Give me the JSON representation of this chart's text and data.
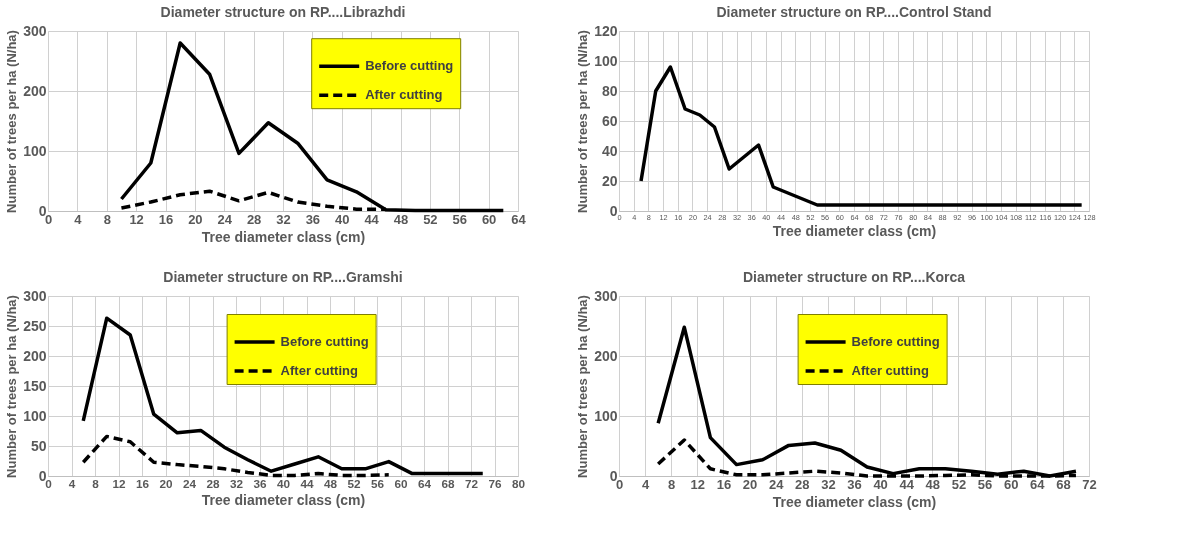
{
  "chart_data": [
    {
      "type": "line",
      "title": "Diameter structure on RP....Librazhdi",
      "xlabel": "Tree diameter class (cm)",
      "ylabel": "Number of trees per ha (N/ha)",
      "xlim": [
        0,
        64
      ],
      "xticks": [
        0,
        4,
        8,
        12,
        16,
        20,
        24,
        28,
        32,
        36,
        40,
        44,
        48,
        52,
        56,
        60,
        64
      ],
      "ylim": [
        0,
        300
      ],
      "yticks": [
        0,
        100,
        200,
        300
      ],
      "grid": true,
      "legend": "top right",
      "series": [
        {
          "name": "Before cutting",
          "color": "#000000",
          "line_style": "solid",
          "x": [
            10,
            14,
            18,
            22,
            26,
            30,
            34,
            38,
            42,
            46,
            50,
            54,
            58,
            62
          ],
          "values": [
            20,
            80,
            280,
            228,
            96,
            147,
            113,
            52,
            32,
            2,
            1,
            1,
            1,
            1
          ]
        },
        {
          "name": "After cutting",
          "color": "#000000",
          "line_style": "dashed",
          "x": [
            10,
            14,
            18,
            22,
            26,
            30,
            34,
            38,
            42,
            46
          ],
          "values": [
            5,
            15,
            27,
            33,
            17,
            31,
            15,
            8,
            3,
            3
          ]
        }
      ]
    },
    {
      "type": "line",
      "title": "Diameter structure on RP....Control Stand",
      "xlabel": "Tree diameter class (cm)",
      "ylabel": "Number of trees per ha (N/ha)",
      "xlim": [
        0,
        128
      ],
      "xticks": [
        0,
        4,
        8,
        12,
        16,
        20,
        24,
        28,
        32,
        36,
        40,
        44,
        48,
        52,
        56,
        60,
        64,
        68,
        72,
        76,
        80,
        84,
        88,
        92,
        96,
        100,
        104,
        108,
        112,
        116,
        120,
        124,
        128
      ],
      "ylim": [
        0,
        120
      ],
      "yticks": [
        0,
        20,
        40,
        60,
        80,
        100,
        120
      ],
      "grid": true,
      "series": [
        {
          "color": "#000000",
          "line_style": "solid",
          "x": [
            6,
            10,
            14,
            18,
            22,
            26,
            30,
            34,
            38,
            42,
            46,
            50,
            54,
            58,
            62,
            66,
            70,
            74,
            78,
            82,
            86,
            90,
            94,
            98,
            102,
            106,
            110,
            114,
            118,
            122,
            126
          ],
          "values": [
            20,
            80,
            96,
            68,
            64,
            56,
            28,
            36,
            44,
            16,
            12,
            8,
            4,
            4,
            4,
            4,
            4,
            4,
            4,
            4,
            4,
            4,
            4,
            4,
            4,
            4,
            4,
            4,
            4,
            4,
            4
          ]
        }
      ]
    },
    {
      "type": "line",
      "title": "Diameter structure on RP....Gramshi",
      "xlabel": "Tree diameter class (cm)",
      "ylabel": "Number of trees per ha (N/ha)",
      "xlim": [
        0,
        80
      ],
      "xticks": [
        0,
        4,
        8,
        12,
        16,
        20,
        24,
        28,
        32,
        36,
        40,
        44,
        48,
        52,
        56,
        60,
        64,
        68,
        72,
        76,
        80
      ],
      "ylim": [
        0,
        300
      ],
      "yticks": [
        0,
        50,
        100,
        150,
        200,
        250,
        300
      ],
      "grid": true,
      "legend": "top",
      "series": [
        {
          "name": "Before cutting",
          "color": "#000000",
          "line_style": "solid",
          "x": [
            6,
            10,
            14,
            18,
            22,
            26,
            30,
            34,
            38,
            42,
            46,
            50,
            54,
            58,
            62,
            66,
            70,
            74
          ],
          "values": [
            92,
            263,
            235,
            103,
            72,
            76,
            48,
            27,
            8,
            20,
            32,
            12,
            12,
            24,
            4,
            4,
            4,
            4
          ]
        },
        {
          "name": "After cutting",
          "color": "#000000",
          "line_style": "dashed",
          "x": [
            6,
            10,
            14,
            18,
            22,
            26,
            30,
            34,
            38,
            42,
            46,
            50,
            54,
            58
          ],
          "values": [
            23,
            66,
            57,
            23,
            19,
            16,
            12,
            6,
            1,
            1,
            4,
            1,
            1,
            2
          ]
        }
      ]
    },
    {
      "type": "line",
      "title": "Diameter structure on RP....Korca",
      "xlabel": "Tree diameter class (cm)",
      "ylabel": "Number of trees per ha (N/ha)",
      "xlim": [
        0,
        72
      ],
      "xticks": [
        0,
        4,
        8,
        12,
        16,
        20,
        24,
        28,
        32,
        36,
        40,
        44,
        48,
        52,
        56,
        60,
        64,
        68,
        72
      ],
      "ylim": [
        0,
        300
      ],
      "yticks": [
        0,
        100,
        200,
        300
      ],
      "grid": true,
      "legend": "top",
      "series": [
        {
          "name": "Before cutting",
          "color": "#000000",
          "line_style": "solid",
          "x": [
            6,
            10,
            14,
            18,
            22,
            26,
            30,
            34,
            38,
            42,
            46,
            50,
            54,
            58,
            62,
            66,
            70
          ],
          "values": [
            88,
            248,
            64,
            19,
            27,
            51,
            55,
            43,
            15,
            4,
            12,
            12,
            8,
            3,
            8,
            0,
            8
          ]
        },
        {
          "name": "After cutting",
          "color": "#000000",
          "line_style": "dashed",
          "x": [
            6,
            10,
            14,
            18,
            22,
            26,
            30,
            34,
            38,
            42,
            46,
            50,
            54,
            58,
            62,
            66,
            70
          ],
          "values": [
            20,
            60,
            12,
            2,
            2,
            5,
            8,
            5,
            0,
            0,
            0,
            1,
            2,
            0,
            0,
            0,
            1
          ]
        }
      ]
    }
  ]
}
